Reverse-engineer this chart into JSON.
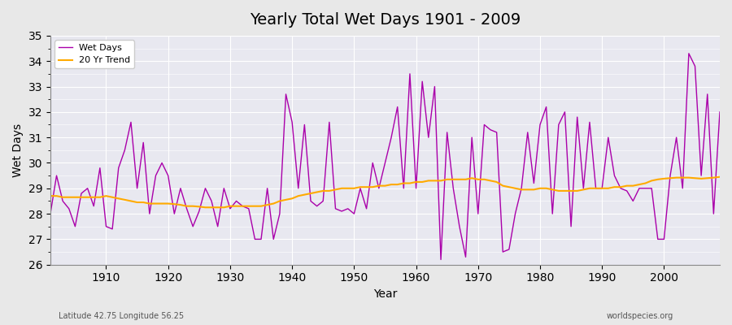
{
  "title": "Yearly Total Wet Days 1901 - 2009",
  "xlabel": "Year",
  "ylabel": "Wet Days",
  "subtitle": "Latitude 42.75 Longitude 56.25",
  "watermark": "worldspecies.org",
  "ylim": [
    26,
    35
  ],
  "yticks": [
    26,
    27,
    28,
    29,
    30,
    31,
    32,
    33,
    34,
    35
  ],
  "line_color": "#aa00aa",
  "trend_color": "#ffaa00",
  "bg_color": "#e8e8e8",
  "plot_bg": "#e8e8f0",
  "years": [
    1901,
    1902,
    1903,
    1904,
    1905,
    1906,
    1907,
    1908,
    1909,
    1910,
    1911,
    1912,
    1913,
    1914,
    1915,
    1916,
    1917,
    1918,
    1919,
    1920,
    1921,
    1922,
    1923,
    1924,
    1925,
    1926,
    1927,
    1928,
    1929,
    1930,
    1931,
    1932,
    1933,
    1934,
    1935,
    1936,
    1937,
    1938,
    1939,
    1940,
    1941,
    1942,
    1943,
    1944,
    1945,
    1946,
    1947,
    1948,
    1949,
    1950,
    1951,
    1952,
    1953,
    1954,
    1955,
    1956,
    1957,
    1958,
    1959,
    1960,
    1961,
    1962,
    1963,
    1964,
    1965,
    1966,
    1967,
    1968,
    1969,
    1970,
    1971,
    1972,
    1973,
    1974,
    1975,
    1976,
    1977,
    1978,
    1979,
    1980,
    1981,
    1982,
    1983,
    1984,
    1985,
    1986,
    1987,
    1988,
    1989,
    1990,
    1991,
    1992,
    1993,
    1994,
    1995,
    1996,
    1997,
    1998,
    1999,
    2000,
    2001,
    2002,
    2003,
    2004,
    2005,
    2006,
    2007,
    2008,
    2009
  ],
  "wet_days": [
    28.0,
    29.5,
    28.5,
    28.2,
    27.5,
    28.8,
    29.0,
    28.3,
    29.8,
    27.5,
    27.4,
    29.8,
    30.5,
    31.6,
    29.0,
    30.8,
    28.0,
    29.5,
    30.0,
    29.5,
    28.0,
    29.0,
    28.2,
    27.5,
    28.1,
    29.0,
    28.5,
    27.5,
    29.0,
    28.2,
    28.5,
    28.3,
    28.2,
    27.0,
    27.0,
    29.0,
    27.0,
    28.0,
    32.7,
    31.6,
    29.0,
    31.5,
    28.5,
    28.3,
    28.5,
    31.6,
    28.2,
    28.1,
    28.2,
    28.0,
    29.0,
    28.2,
    30.0,
    29.0,
    30.0,
    31.0,
    32.2,
    29.0,
    33.5,
    29.0,
    33.2,
    31.0,
    33.0,
    26.2,
    31.2,
    29.0,
    27.5,
    26.3,
    31.0,
    28.0,
    31.5,
    31.3,
    31.2,
    26.5,
    26.6,
    28.0,
    29.0,
    31.2,
    29.2,
    31.5,
    32.2,
    28.0,
    31.5,
    32.0,
    27.5,
    31.8,
    29.0,
    31.6,
    29.0,
    29.0,
    31.0,
    29.5,
    29.0,
    28.9,
    28.5,
    29.0,
    29.0,
    29.0,
    27.0,
    27.0,
    29.5,
    31.0,
    29.0,
    34.3,
    33.8,
    29.5,
    32.7,
    28.0,
    32.0
  ],
  "trend": [
    28.7,
    28.7,
    28.65,
    28.65,
    28.65,
    28.65,
    28.65,
    28.65,
    28.65,
    28.7,
    28.65,
    28.6,
    28.55,
    28.5,
    28.45,
    28.45,
    28.4,
    28.4,
    28.4,
    28.4,
    28.38,
    28.35,
    28.3,
    28.3,
    28.28,
    28.25,
    28.25,
    28.25,
    28.25,
    28.3,
    28.3,
    28.3,
    28.3,
    28.3,
    28.3,
    28.35,
    28.4,
    28.5,
    28.55,
    28.6,
    28.7,
    28.75,
    28.8,
    28.85,
    28.9,
    28.9,
    28.95,
    29.0,
    29.0,
    29.0,
    29.05,
    29.05,
    29.05,
    29.1,
    29.1,
    29.15,
    29.15,
    29.2,
    29.2,
    29.25,
    29.25,
    29.3,
    29.3,
    29.3,
    29.35,
    29.35,
    29.35,
    29.35,
    29.4,
    29.35,
    29.35,
    29.3,
    29.25,
    29.1,
    29.05,
    29.0,
    28.95,
    28.95,
    28.95,
    29.0,
    29.0,
    28.95,
    28.9,
    28.9,
    28.9,
    28.9,
    28.95,
    29.0,
    29.0,
    29.0,
    29.0,
    29.05,
    29.05,
    29.1,
    29.1,
    29.15,
    29.2,
    29.3,
    29.35,
    29.38,
    29.4,
    29.42,
    29.42,
    29.42,
    29.4,
    29.38,
    29.4,
    29.42,
    29.45
  ]
}
